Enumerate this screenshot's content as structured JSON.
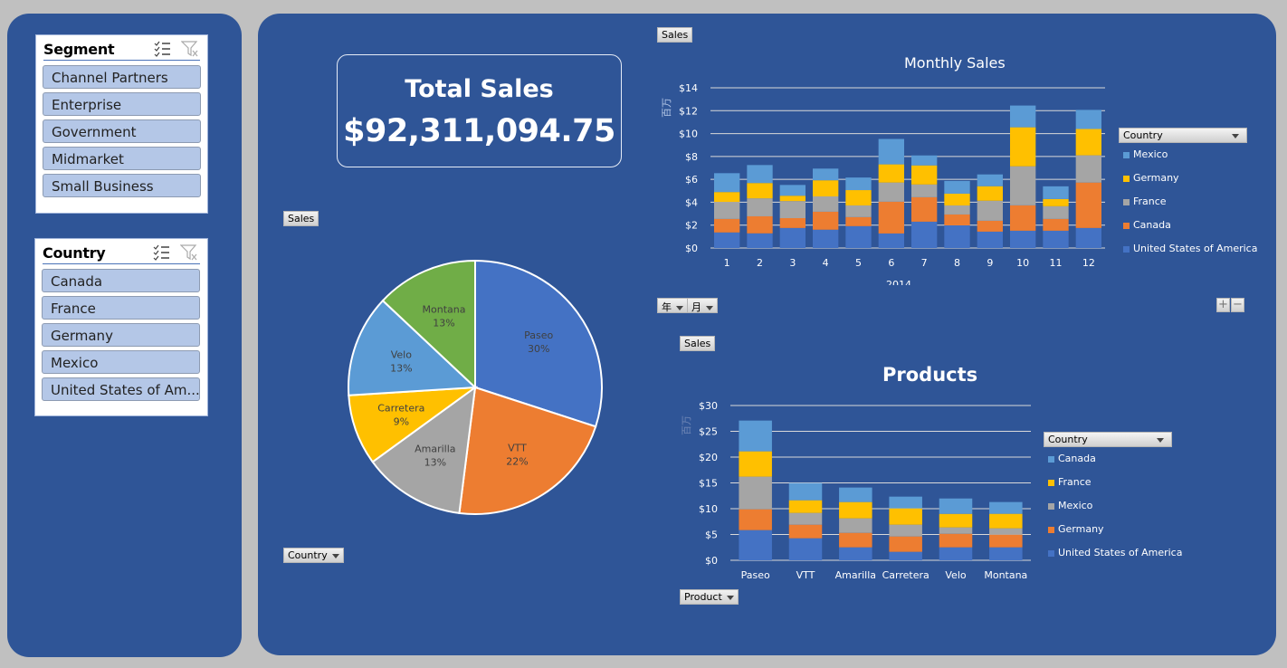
{
  "slicers": {
    "segment": {
      "title": "Segment",
      "items": [
        "Channel Partners",
        "Enterprise",
        "Government",
        "Midmarket",
        "Small Business"
      ]
    },
    "country": {
      "title": "Country",
      "items": [
        "Canada",
        "France",
        "Germany",
        "Mexico",
        "United States of Am..."
      ]
    },
    "icons": {
      "multi_select": "multi-select-icon",
      "clear_filter": "clear-filter-icon"
    }
  },
  "kpi": {
    "title": "Total Sales",
    "value": "$92,311,094.75"
  },
  "field_buttons": {
    "pie_values": "Sales",
    "pie_axis": "Country",
    "monthly_values": "Sales",
    "monthly_year": "年",
    "monthly_month": "月",
    "products_values": "Sales",
    "products_axis": "Product",
    "zoom_in": "+",
    "zoom_out": "−"
  },
  "colors": {
    "background": "#c0c0c0",
    "panel": "#2f5597",
    "usa": "#4472c4",
    "canada": "#ed7d31",
    "france": "#a5a5a5",
    "germany": "#ffc000",
    "mexico": "#5b9bd5",
    "montana": "#70ad47"
  },
  "chart_data": [
    {
      "id": "pie",
      "type": "pie",
      "title": "",
      "slices": [
        {
          "label": "Paseo",
          "pct": 30,
          "color": "#4472c4"
        },
        {
          "label": "VTT",
          "pct": 22,
          "color": "#ed7d31"
        },
        {
          "label": "Amarilla",
          "pct": 13,
          "color": "#a5a5a5"
        },
        {
          "label": "Carretera",
          "pct": 9,
          "color": "#ffc000"
        },
        {
          "label": "Velo",
          "pct": 13,
          "color": "#5b9bd5"
        },
        {
          "label": "Montana",
          "pct": 13,
          "color": "#70ad47"
        }
      ]
    },
    {
      "id": "monthly",
      "type": "bar",
      "stacked": true,
      "title": "Monthly Sales",
      "xlabel": "2014",
      "ylabel": "百万",
      "ylim": [
        0,
        14
      ],
      "yticks": [
        "$0",
        "$2",
        "$4",
        "$6",
        "$8",
        "$10",
        "$12",
        "$14"
      ],
      "ytick_values": [
        0,
        2,
        4,
        6,
        8,
        10,
        12,
        14
      ],
      "categories": [
        "1",
        "2",
        "3",
        "4",
        "5",
        "6",
        "7",
        "8",
        "9",
        "10",
        "11",
        "12"
      ],
      "legend_title": "Country",
      "legend_position": "right",
      "series": [
        {
          "name": "United States of America",
          "color": "#4472c4",
          "values": [
            1.36,
            1.28,
            1.75,
            1.6,
            1.91,
            1.27,
            2.3,
            1.98,
            1.43,
            1.51,
            1.51,
            1.75
          ]
        },
        {
          "name": "Canada",
          "color": "#ed7d31",
          "values": [
            1.18,
            1.49,
            0.86,
            1.57,
            0.79,
            2.78,
            2.14,
            0.95,
            0.95,
            2.22,
            1.03,
            3.97
          ]
        },
        {
          "name": "France",
          "color": "#a5a5a5",
          "values": [
            1.49,
            1.57,
            1.49,
            1.34,
            1.02,
            1.67,
            1.11,
            0.79,
            1.75,
            3.41,
            1.11,
            2.38
          ]
        },
        {
          "name": "Germany",
          "color": "#ffc000",
          "values": [
            0.86,
            1.34,
            0.47,
            1.41,
            1.34,
            1.59,
            1.67,
            1.03,
            1.27,
            3.41,
            0.63,
            2.3
          ]
        },
        {
          "name": "Mexico",
          "color": "#5b9bd5",
          "values": [
            1.65,
            1.57,
            0.94,
            1.02,
            1.1,
            2.22,
            0.87,
            1.11,
            1.03,
            1.9,
            1.11,
            1.67
          ]
        }
      ]
    },
    {
      "id": "products",
      "type": "bar",
      "stacked": true,
      "title": "Products",
      "xlabel": "",
      "ylabel": "百万",
      "ylim": [
        0,
        30
      ],
      "yticks": [
        "$0",
        "$5",
        "$10",
        "$15",
        "$20",
        "$25",
        "$30"
      ],
      "ytick_values": [
        0,
        5,
        10,
        15,
        20,
        25,
        30
      ],
      "categories": [
        "Paseo",
        "VTT",
        "Amarilla",
        "Carretera",
        "Velo",
        "Montana"
      ],
      "legend_title": "Country",
      "legend_position": "right",
      "series": [
        {
          "name": "United States of America",
          "color": "#4472c4",
          "values": [
            5.85,
            4.27,
            2.51,
            1.64,
            2.51,
            2.51
          ]
        },
        {
          "name": "Germany",
          "color": "#ed7d31",
          "values": [
            4.04,
            2.63,
            2.81,
            2.98,
            2.63,
            2.46
          ]
        },
        {
          "name": "Mexico",
          "color": "#a5a5a5",
          "values": [
            6.32,
            2.28,
            2.81,
            2.28,
            1.23,
            1.23
          ]
        },
        {
          "name": "France",
          "color": "#ffc000",
          "values": [
            4.91,
            2.46,
            3.16,
            3.16,
            2.63,
            2.81
          ]
        },
        {
          "name": "Canada",
          "color": "#5b9bd5",
          "values": [
            5.96,
            3.33,
            2.81,
            2.28,
            2.98,
            2.28
          ]
        }
      ]
    }
  ]
}
